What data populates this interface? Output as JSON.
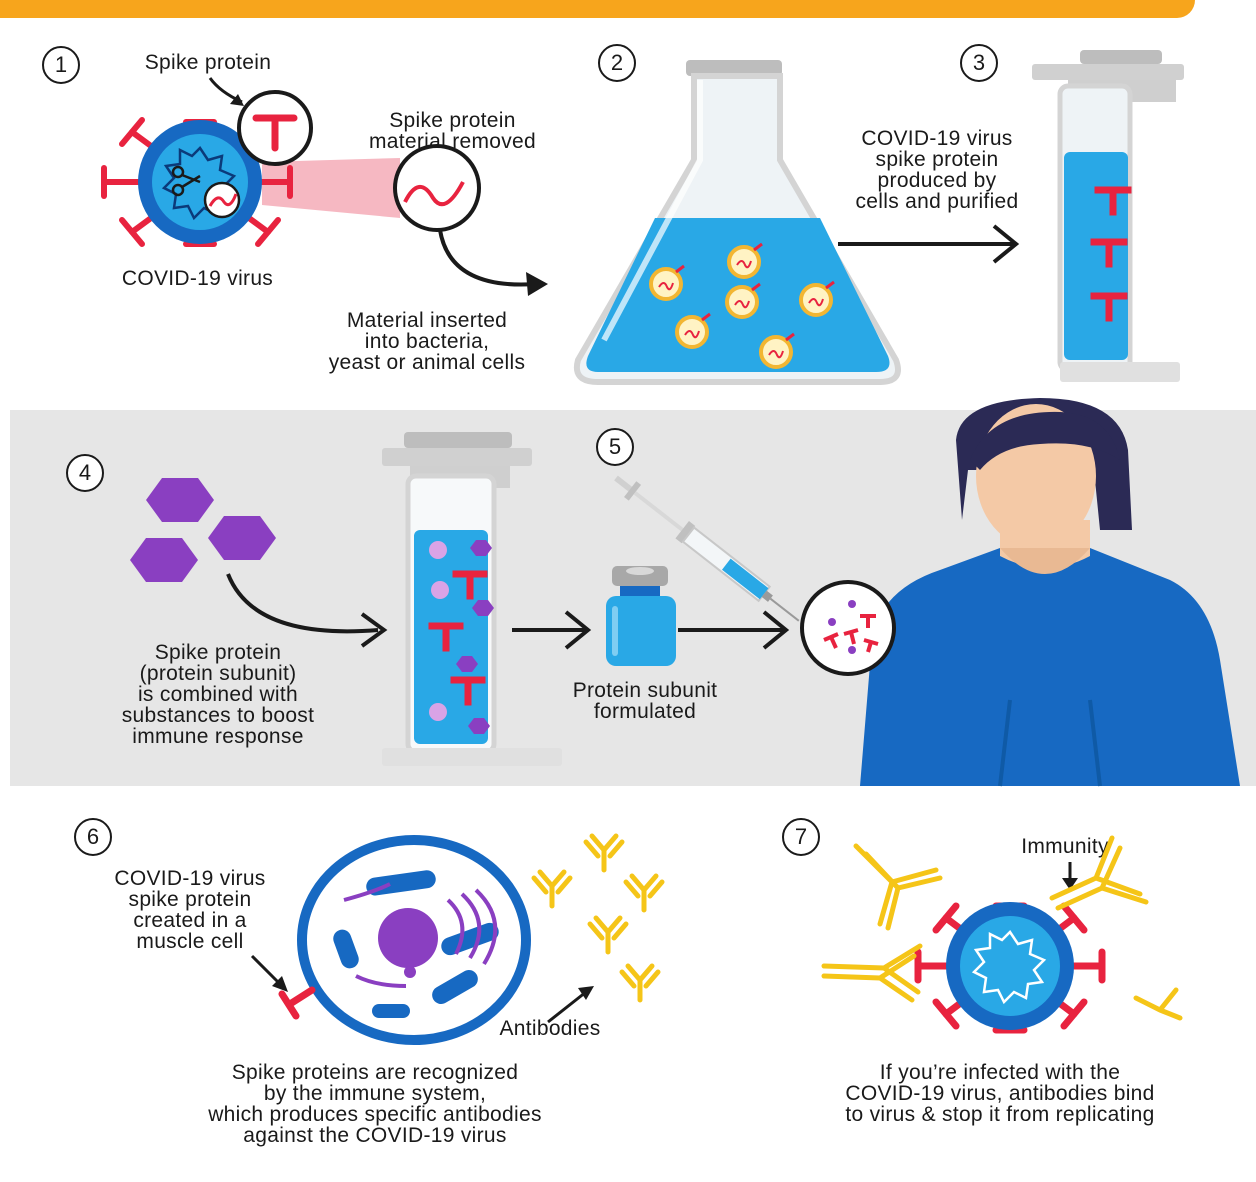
{
  "steps": {
    "s1": {
      "number": "1",
      "spike_label": "Spike protein",
      "removed_label": "Spike protein\nmaterial removed",
      "virus_label": "COVID-19 virus",
      "inserted_label": "Material inserted\ninto bacteria,\nyeast or animal cells"
    },
    "s2": {
      "number": "2"
    },
    "s3": {
      "number": "3",
      "label": "COVID-19 virus\nspike protein\nproduced by\ncells and purified"
    },
    "s4": {
      "number": "4",
      "label": "Spike protein\n(protein subunit)\nis combined with\nsubstances to boost\nimmune response"
    },
    "s5": {
      "number": "5",
      "label": "Protein subunit\nformulated"
    },
    "s6": {
      "number": "6",
      "cell_label": "COVID-19 virus\nspike protein\ncreated in a\nmuscle cell",
      "antibodies_label": "Antibodies",
      "caption": "Spike proteins are recognized\nby the immune system,\nwhich produces specific antibodies\nagainst the COVID-19 virus"
    },
    "s7": {
      "number": "7",
      "immunity_label": "Immunity",
      "caption": "If you’re infected with the\nCOVID-19 virus, antibodies bind\nto virus & stop it from replicating"
    }
  },
  "colors": {
    "accent_bar": "#f7a51c",
    "spike_red": "#e8233f",
    "virus_blue": "#1769c2",
    "liquid_blue": "#29a8e6",
    "purple": "#8a3fc1",
    "antibody_yellow": "#f5c518",
    "band_gray": "#e6e6e6"
  }
}
